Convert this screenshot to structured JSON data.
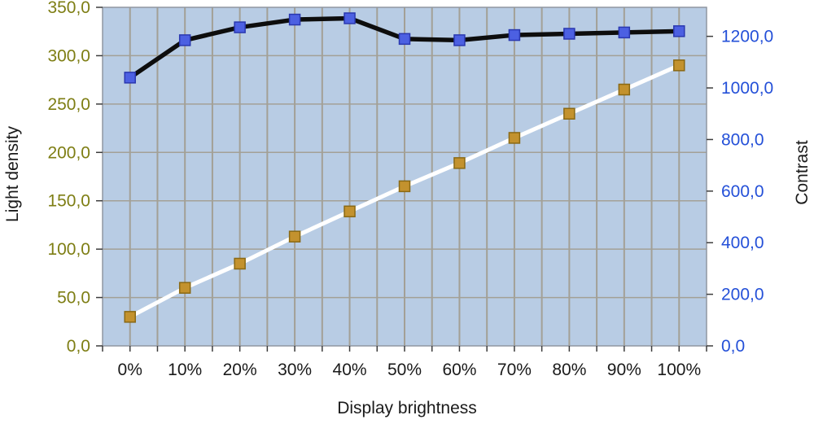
{
  "page": {
    "background": "#ffffff"
  },
  "colors": {
    "plot_bg": "#b8cce4",
    "grid": "#a3a096",
    "axis_border": "#8f96a1",
    "tick": "#3c3c3c",
    "left_tick_label": "#7e7e14",
    "right_tick_label": "#2450d8",
    "x_tick_label": "#1a1a1a",
    "axis_title": "#1a1a1a"
  },
  "chart_data": {
    "type": "line",
    "title": "",
    "categories": [
      "0%",
      "10%",
      "20%",
      "30%",
      "40%",
      "50%",
      "60%",
      "70%",
      "80%",
      "90%",
      "100%"
    ],
    "series": [
      {
        "name": "Light density",
        "axis": "left",
        "values": [
          30,
          60,
          85,
          113,
          139,
          165,
          189,
          215,
          240,
          265,
          290
        ],
        "line_color": "#ffffff",
        "line_width": 5,
        "marker": "square",
        "marker_fill": "#c3922e",
        "marker_stroke": "#8a6914",
        "marker_size": 13
      },
      {
        "name": "Contrast",
        "axis": "right",
        "values": [
          1040,
          1185,
          1235,
          1265,
          1270,
          1190,
          1185,
          1205,
          1210,
          1215,
          1220
        ],
        "line_color": "#0d0d0d",
        "line_width": 5.5,
        "marker": "square",
        "marker_fill": "#4c60e2",
        "marker_stroke": "#2a38b0",
        "marker_size": 13
      }
    ],
    "xlabel": "Display brightness",
    "ylabel_left": "Light density",
    "ylabel_right": "Contrast",
    "left_axis": {
      "min": 0,
      "max": 350,
      "tick_step": 50,
      "tick_labels": [
        "0,0",
        "50,0",
        "100,0",
        "150,0",
        "200,0",
        "250,0",
        "300,0",
        "350,0"
      ]
    },
    "right_axis": {
      "min": 0,
      "max": 1312.5,
      "tick_step": 200,
      "tick_labels": [
        "0,0",
        "200,0",
        "400,0",
        "600,0",
        "800,0",
        "1000,0",
        "1200,0"
      ]
    },
    "grid": {
      "horizontal_step": 50,
      "vertical_every_half_category": true
    },
    "legend_position": "none"
  }
}
